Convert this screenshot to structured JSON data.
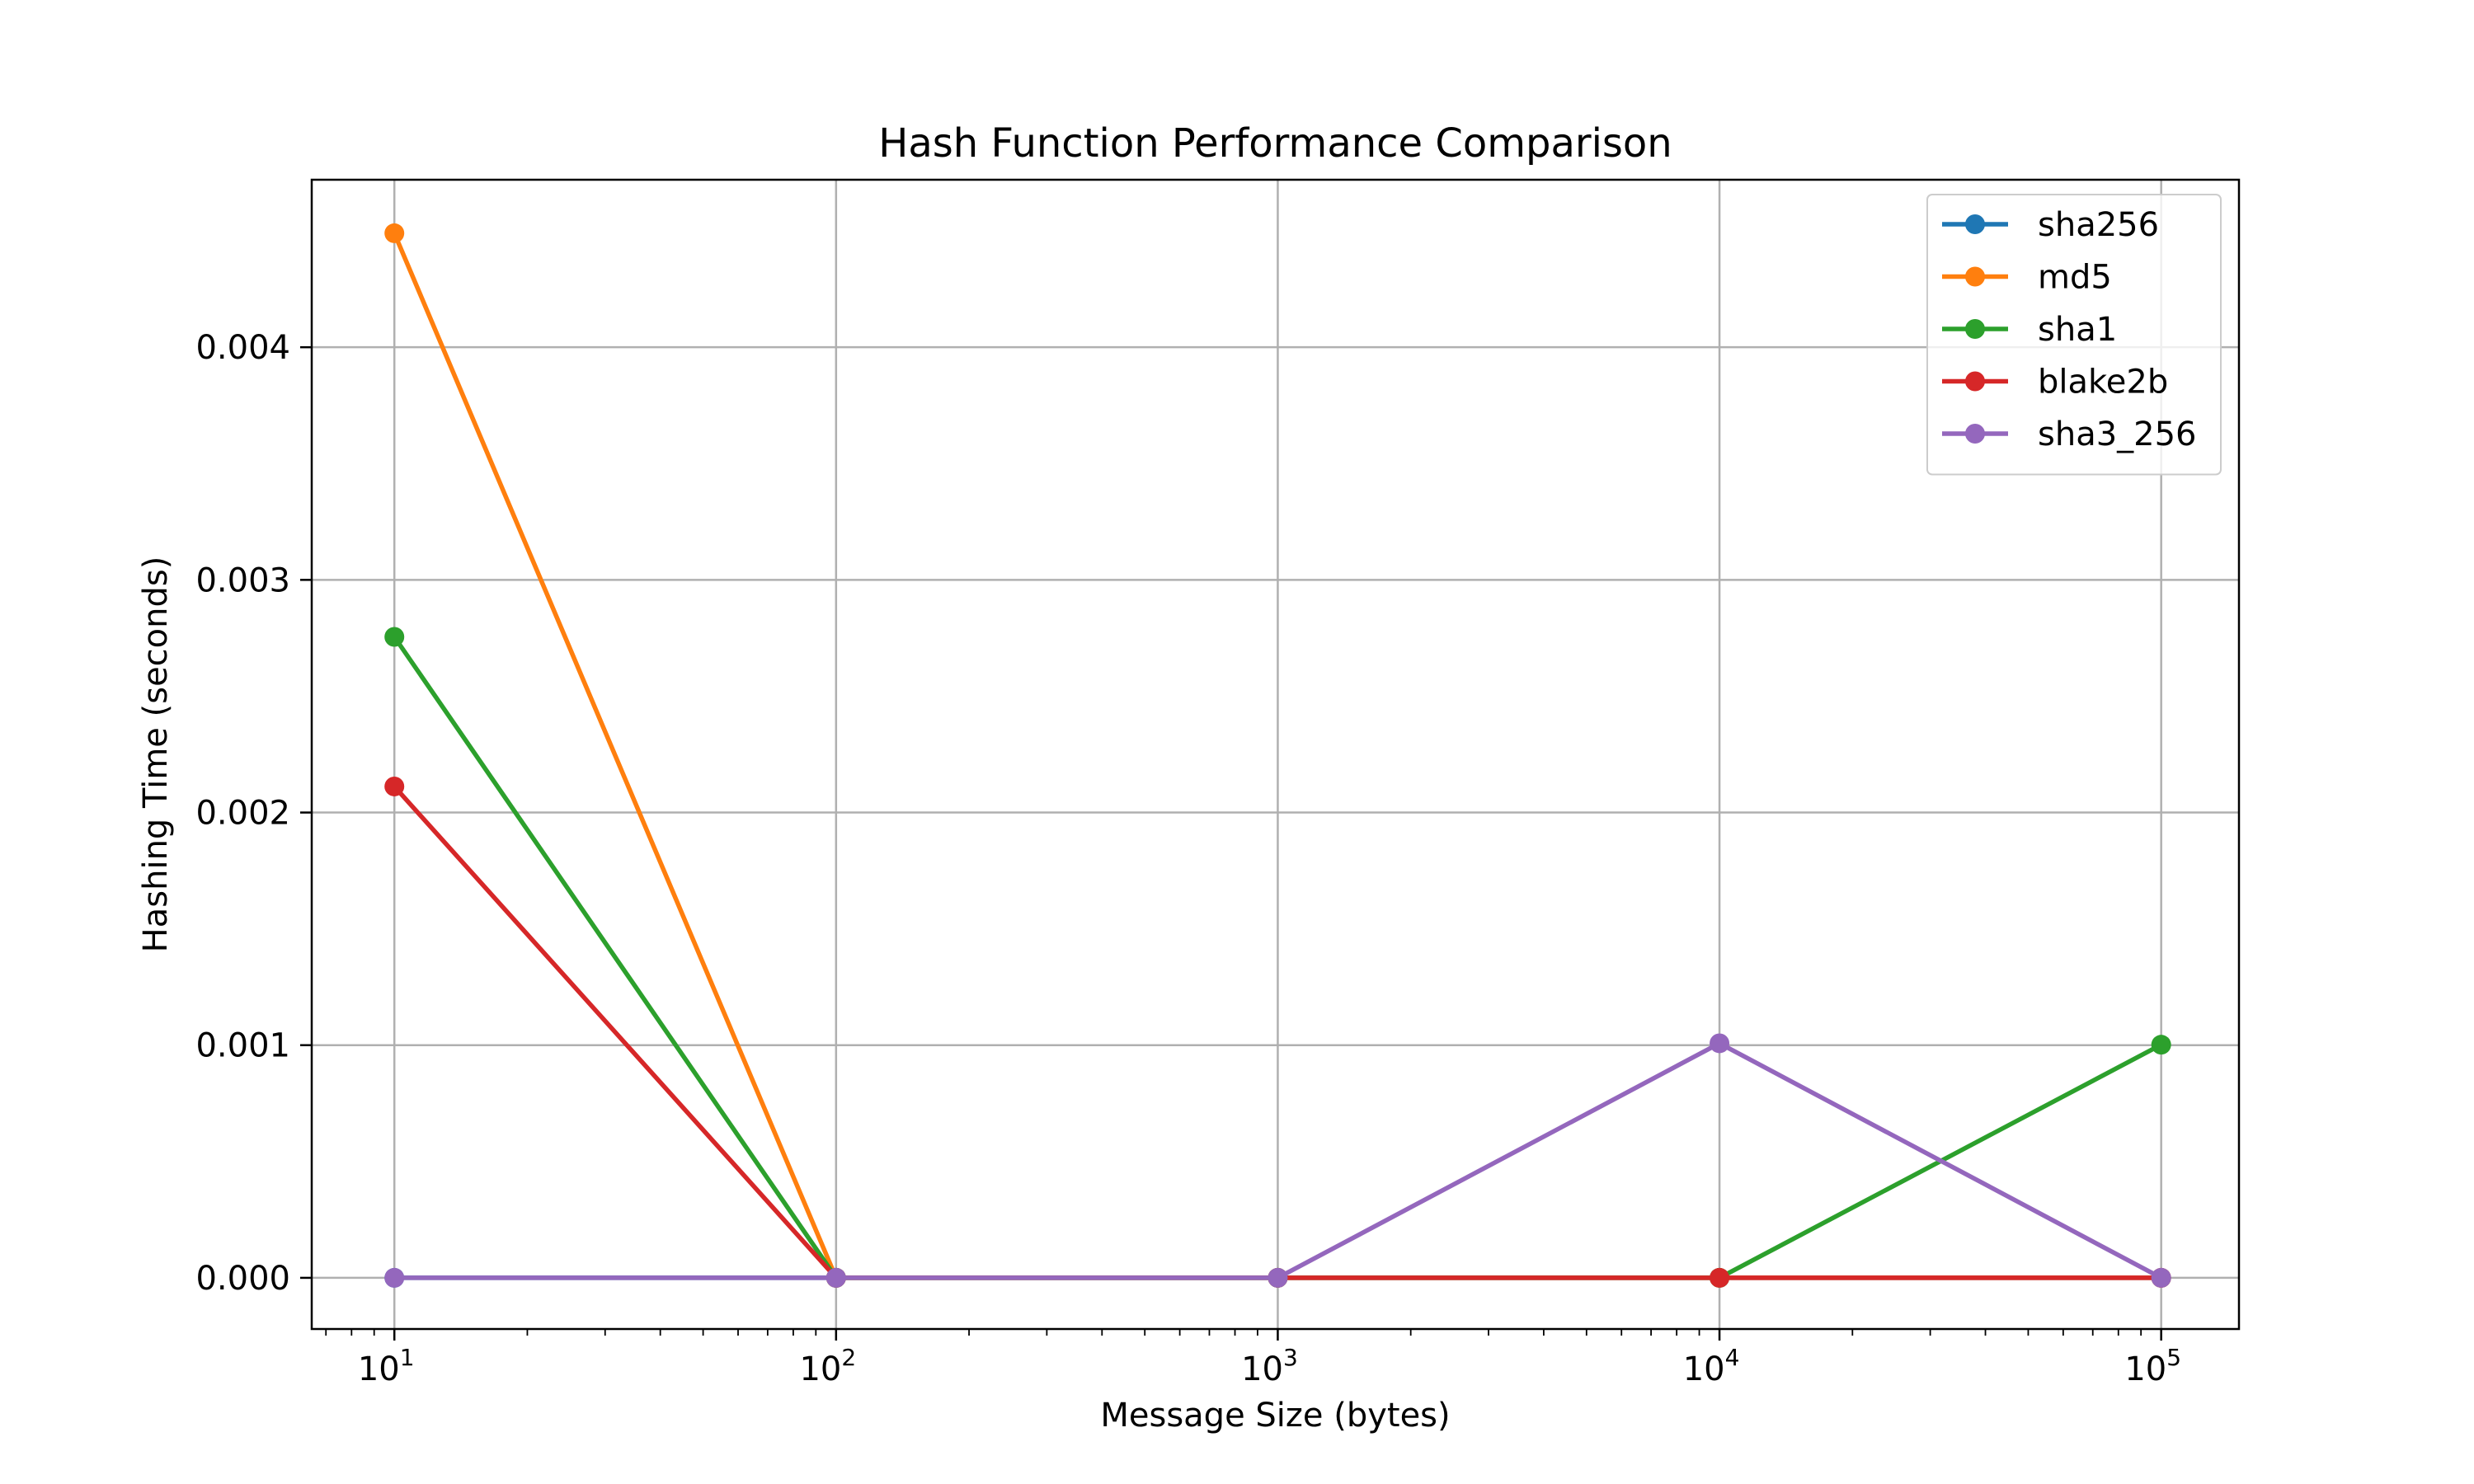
{
  "chart_data": {
    "type": "line",
    "title": "Hash Function Performance Comparison",
    "xlabel": "Message Size (bytes)",
    "ylabel": "Hashing Time (seconds)",
    "xscale": "log",
    "xlim": [
      6.5,
      150000
    ],
    "ylim": [
      -0.00022,
      0.00472
    ],
    "x": [
      10,
      100,
      1000,
      10000,
      100000
    ],
    "x_ticks": [
      {
        "value": 10,
        "base": "10",
        "exp": "1"
      },
      {
        "value": 100,
        "base": "10",
        "exp": "2"
      },
      {
        "value": 1000,
        "base": "10",
        "exp": "3"
      },
      {
        "value": 10000,
        "base": "10",
        "exp": "4"
      },
      {
        "value": 100000,
        "base": "10",
        "exp": "5"
      }
    ],
    "y_ticks": [
      {
        "value": 0,
        "label": "0.000"
      },
      {
        "value": 0.001,
        "label": "0.001"
      },
      {
        "value": 0.002,
        "label": "0.002"
      },
      {
        "value": 0.003,
        "label": "0.003"
      },
      {
        "value": 0.004,
        "label": "0.004"
      }
    ],
    "grid": true,
    "legend_position": "top-right",
    "series": [
      {
        "name": "sha256",
        "color": "#1f77b4",
        "values": [
          0.0,
          0.0,
          0.0,
          0.0,
          0.0
        ]
      },
      {
        "name": "md5",
        "color": "#ff7f0e",
        "values": [
          0.00449,
          0.0,
          0.0,
          0.0,
          0.0
        ]
      },
      {
        "name": "sha1",
        "color": "#2ca02c",
        "values": [
          0.002755,
          0.0,
          0.0,
          0.0,
          0.001002
        ]
      },
      {
        "name": "blake2b",
        "color": "#d62728",
        "values": [
          0.002112,
          0.0,
          0.0,
          0.0,
          0.0
        ]
      },
      {
        "name": "sha3_256",
        "color": "#9467bd",
        "values": [
          0.0,
          0.0,
          0.0,
          0.001008,
          0.0
        ]
      }
    ]
  }
}
